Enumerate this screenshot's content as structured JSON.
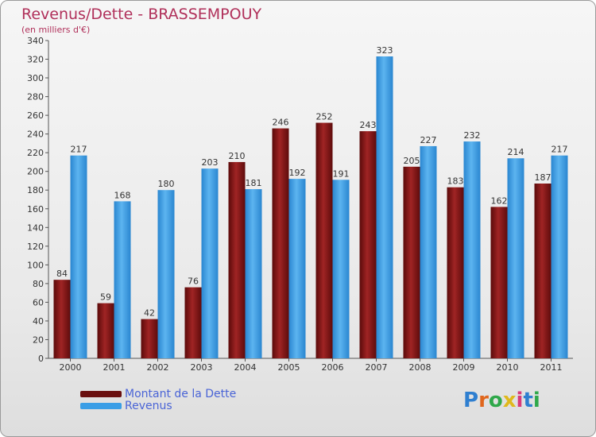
{
  "header": {
    "title": "Revenus/Dette - BRASSEMPOUY",
    "subtitle": "(en milliers d'€)"
  },
  "chart_data": {
    "type": "bar",
    "title": "Revenus/Dette - BRASSEMPOUY",
    "subtitle": "(en milliers d'€)",
    "xlabel": "",
    "ylabel": "",
    "ylim": [
      0,
      340
    ],
    "ytick_step": 20,
    "grid": false,
    "categories": [
      "2000",
      "2001",
      "2002",
      "2003",
      "2004",
      "2005",
      "2006",
      "2007",
      "2008",
      "2009",
      "2010",
      "2011"
    ],
    "series": [
      {
        "name": "Montant de la Dette",
        "color": "#7a1414",
        "values": [
          84,
          59,
          42,
          76,
          210,
          246,
          252,
          243,
          205,
          183,
          162,
          187
        ]
      },
      {
        "name": "Revenus",
        "color": "#3a9ee6",
        "values": [
          217,
          168,
          180,
          203,
          181,
          192,
          191,
          323,
          227,
          232,
          214,
          217
        ]
      }
    ]
  },
  "legend": {
    "items": [
      {
        "label": "Montant de la Dette",
        "color": "#7a1414"
      },
      {
        "label": "Revenus",
        "color": "#3a9ee6"
      }
    ]
  },
  "logo": {
    "letters": [
      "P",
      "r",
      "o",
      "x",
      "i",
      "t",
      "i"
    ],
    "colors": [
      "#2f7fd0",
      "#e0661c",
      "#2fa84a",
      "#e0b81c",
      "#d83a7a",
      "#2f7fd0",
      "#2fa84a"
    ]
  }
}
